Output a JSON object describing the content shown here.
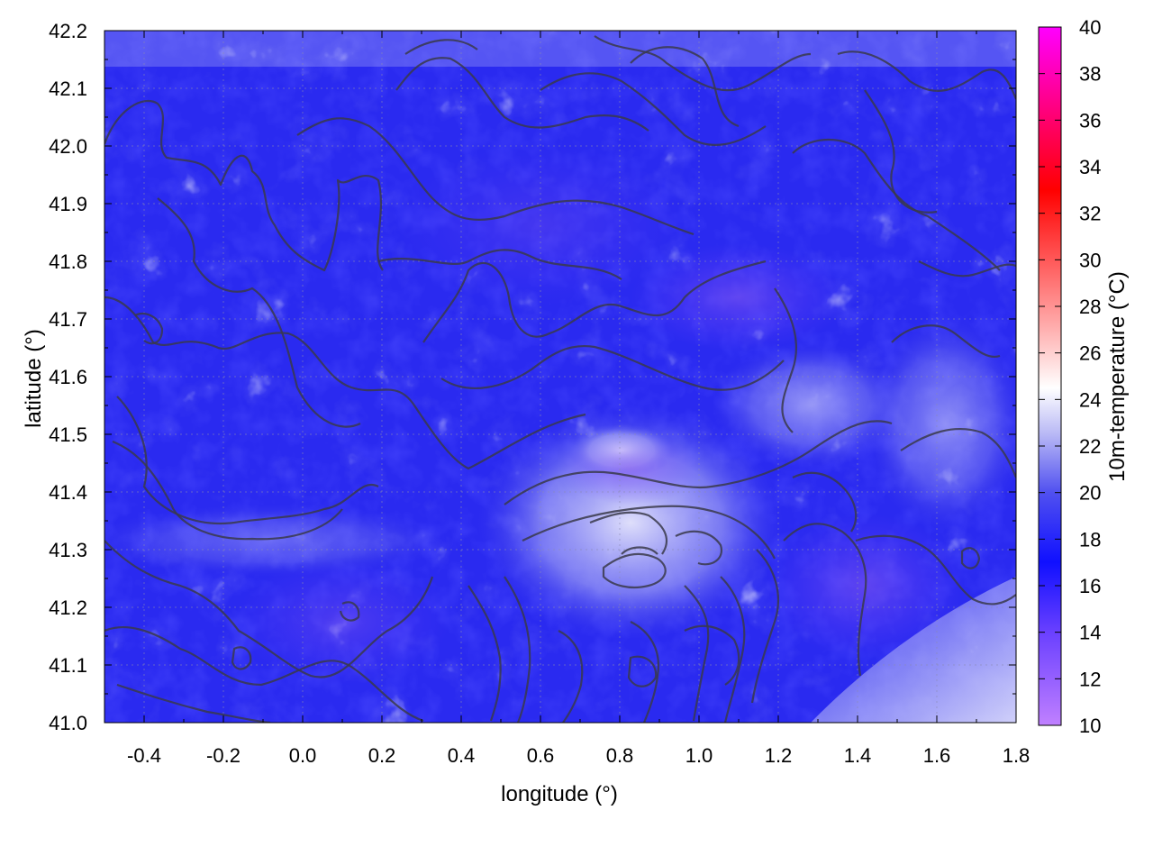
{
  "chart_data": {
    "type": "heatmap",
    "title": "",
    "xlabel": "longitude (°)",
    "ylabel": "latitude (°)",
    "xlim": [
      -0.5,
      1.8
    ],
    "ylim": [
      41.0,
      42.2
    ],
    "x_ticks": [
      "-0.4",
      "-0.2",
      "0.0",
      "0.2",
      "0.4",
      "0.6",
      "0.8",
      "1.0",
      "1.2",
      "1.4",
      "1.6",
      "1.8"
    ],
    "x_tick_values": [
      -0.4,
      -0.2,
      0.0,
      0.2,
      0.4,
      0.6,
      0.8,
      1.0,
      1.2,
      1.4,
      1.6,
      1.8
    ],
    "y_ticks": [
      "41.0",
      "41.1",
      "41.2",
      "41.3",
      "41.4",
      "41.5",
      "41.6",
      "41.7",
      "41.8",
      "41.9",
      "42.0",
      "42.1",
      "42.2"
    ],
    "y_tick_values": [
      41.0,
      41.1,
      41.2,
      41.3,
      41.4,
      41.5,
      41.6,
      41.7,
      41.8,
      41.9,
      42.0,
      42.1,
      42.2
    ],
    "grid": true,
    "colorbar": {
      "label": "10m-temperature (°C)",
      "range": [
        10,
        40
      ],
      "ticks": [
        "10",
        "12",
        "14",
        "16",
        "18",
        "20",
        "22",
        "24",
        "26",
        "28",
        "30",
        "32",
        "34",
        "36",
        "38",
        "40"
      ],
      "tick_values": [
        10,
        12,
        14,
        16,
        18,
        20,
        22,
        24,
        26,
        28,
        30,
        32,
        34,
        36,
        38,
        40
      ],
      "colormap": [
        [
          10,
          "#c080ff"
        ],
        [
          14,
          "#6a40ff"
        ],
        [
          17,
          "#1010ff"
        ],
        [
          20,
          "#5050f0"
        ],
        [
          22.5,
          "#b8b8f5"
        ],
        [
          24.5,
          "#ffffff"
        ],
        [
          27,
          "#ffb0b0"
        ],
        [
          33,
          "#ff0000"
        ],
        [
          40,
          "#ff00ff"
        ]
      ]
    },
    "values_summary": "10m-temperature mostly 16-18 °C (blue) across the domain, with lighter 20-24 °C patches around longitude 0.6-1.4, latitude 41.2-41.5; elevation contours overlaid in dark gray"
  }
}
